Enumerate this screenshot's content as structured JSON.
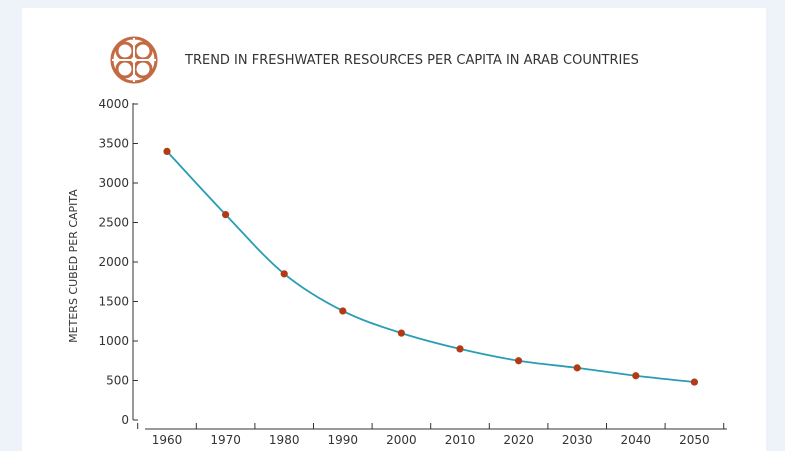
{
  "colors": {
    "background": "#eef3fa",
    "card": "#ffffff",
    "line": "#2a9db4",
    "marker": "#b23a14",
    "axis": "#333333",
    "logo": "#c46a43"
  },
  "logo_icon": "ornamental-knot-emblem",
  "chart_data": {
    "type": "line",
    "title": "TREND IN FRESHWATER RESOURCES PER CAPITA IN ARAB COUNTRIES",
    "xlabel": "",
    "ylabel": "METERS CUBED PER CAPITA",
    "x": [
      1960,
      1970,
      1980,
      1990,
      2000,
      2010,
      2020,
      2030,
      2040,
      2050
    ],
    "x_tick_labels": [
      "1960",
      "1970",
      "1980",
      "1990",
      "2000",
      "2010",
      "2020",
      "2030",
      "2040",
      "2050"
    ],
    "series": [
      {
        "values": [
          3400,
          2600,
          1850,
          1380,
          1100,
          900,
          750,
          660,
          560,
          480
        ]
      }
    ],
    "y_ticks": [
      0,
      500,
      1000,
      1500,
      2000,
      2500,
      3000,
      3500,
      4000
    ],
    "y_tick_labels": [
      "0",
      "500",
      "1000",
      "1500",
      "2000",
      "2500",
      "3000",
      "3500",
      "4000"
    ],
    "ylim": [
      0,
      4000
    ],
    "grid": false,
    "legend": "none"
  }
}
